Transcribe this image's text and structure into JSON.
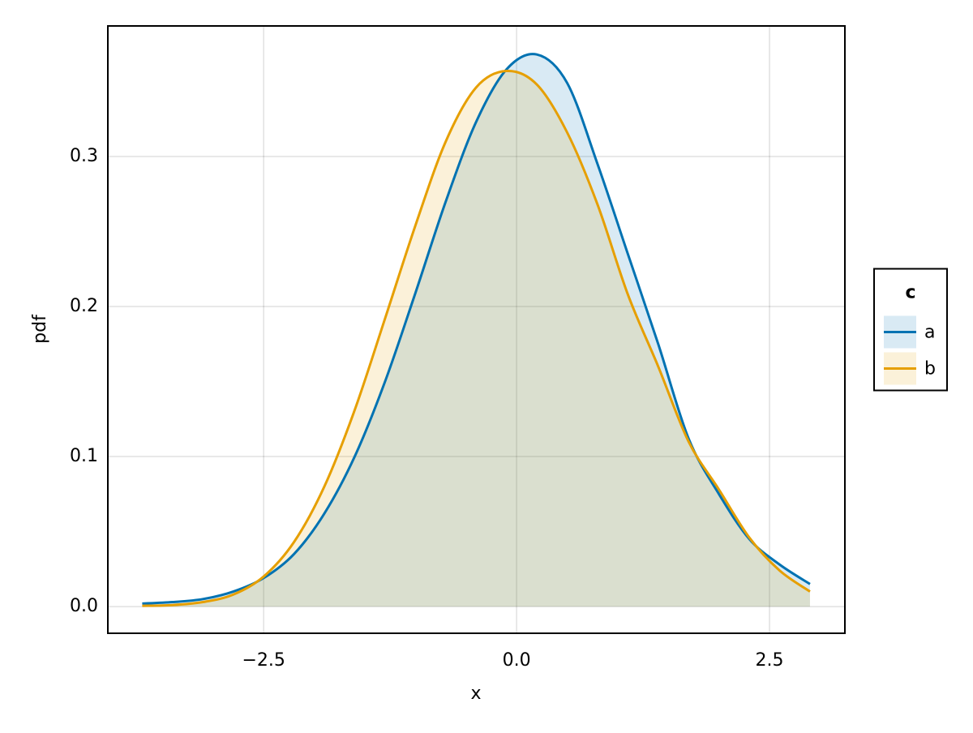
{
  "chart_data": {
    "type": "density",
    "x_label": "x",
    "y_label": "pdf",
    "x": [
      -3.7,
      -3.4,
      -3.1,
      -2.8,
      -2.5,
      -2.2,
      -1.9,
      -1.6,
      -1.3,
      -1.0,
      -0.7,
      -0.4,
      -0.1,
      0.2,
      0.5,
      0.8,
      1.1,
      1.4,
      1.7,
      2.0,
      2.3,
      2.6,
      2.9
    ],
    "series": [
      {
        "name": "a",
        "color": "#0072b2",
        "values": [
          0.002,
          0.003,
          0.005,
          0.01,
          0.019,
          0.035,
          0.062,
          0.1,
          0.15,
          0.209,
          0.27,
          0.323,
          0.358,
          0.368,
          0.349,
          0.295,
          0.235,
          0.175,
          0.112,
          0.075,
          0.045,
          0.028,
          0.015
        ]
      },
      {
        "name": "b",
        "color": "#e69f00",
        "values": [
          0.0005,
          0.001,
          0.003,
          0.008,
          0.02,
          0.043,
          0.08,
          0.131,
          0.192,
          0.254,
          0.31,
          0.346,
          0.357,
          0.348,
          0.316,
          0.268,
          0.208,
          0.16,
          0.11,
          0.078,
          0.046,
          0.024,
          0.01
        ]
      }
    ],
    "legend_title": "c",
    "legend_position": "right",
    "xlim": [
      -4.04,
      3.245
    ],
    "xticks": [
      {
        "value": -2.5,
        "label": "−2.5"
      },
      {
        "value": 0.0,
        "label": "0.0"
      },
      {
        "value": 2.5,
        "label": "2.5"
      }
    ],
    "ylim": [
      -0.0178,
      0.387
    ],
    "yticks": [
      {
        "value": 0.0,
        "label": "0.0"
      },
      0.1,
      0.2,
      0.3
    ],
    "grid": true
  }
}
